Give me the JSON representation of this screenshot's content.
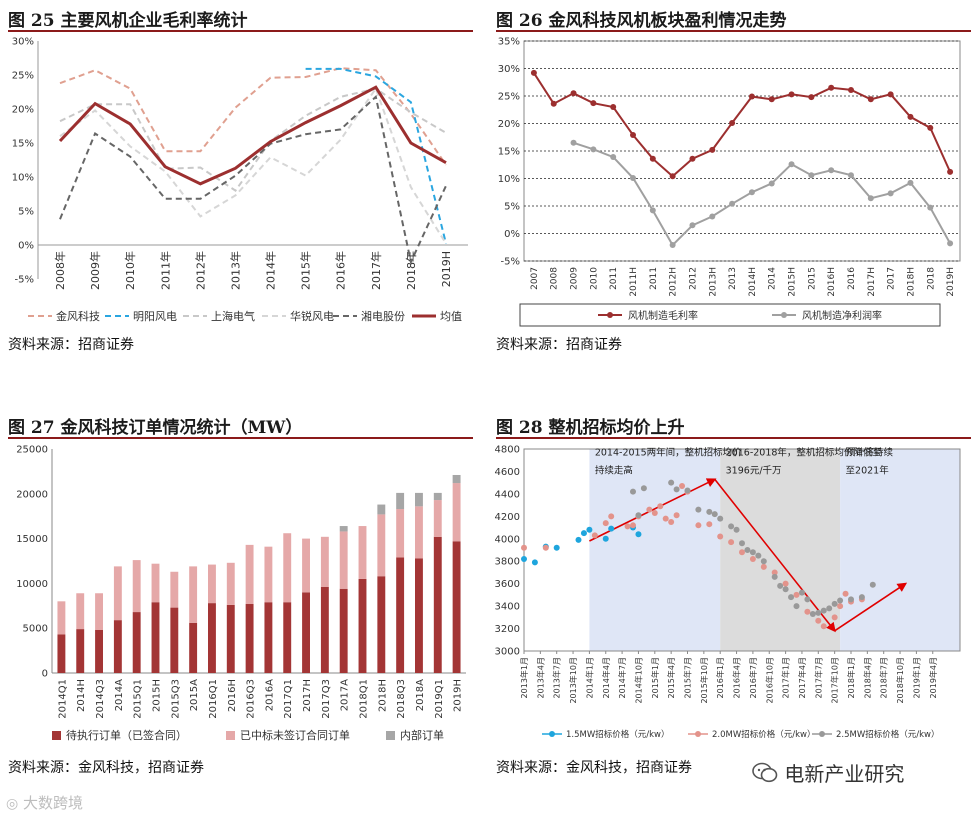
{
  "colors": {
    "accent_red": "#8b1a1a",
    "dark_red": "#a33535",
    "grey_line": "#a0a0a0",
    "bar_dark": "#a33535",
    "bar_pink": "#e5a8a8",
    "bar_grey": "#a6a6a6",
    "band_blue": "#dfe6f6",
    "band_grey": "#dcdcdc",
    "arrow_red": "#e00000"
  },
  "chart_data": [
    {
      "id": "fig25",
      "type": "line",
      "title": "图 25   主要风机企业毛利率统计",
      "source": "资料来源：招商证券",
      "categories": [
        "2008年",
        "2009年",
        "2010年",
        "2011年",
        "2012年",
        "2013年",
        "2014年",
        "2015年",
        "2016年",
        "2017年",
        "2018年",
        "2019H"
      ],
      "ylim": [
        -5,
        30
      ],
      "yticks": [
        "-5%",
        "0%",
        "5%",
        "10%",
        "15%",
        "20%",
        "25%",
        "30%"
      ],
      "ytick_values": [
        -5,
        0,
        5,
        10,
        15,
        20,
        25,
        30
      ],
      "series": [
        {
          "name": "金风科技",
          "color": "#e0a090",
          "dash": "6,4",
          "width": 2,
          "values": [
            23.8,
            25.7,
            23.0,
            13.8,
            13.8,
            20.2,
            24.6,
            24.7,
            26.0,
            25.7,
            19.3,
            11.8
          ]
        },
        {
          "name": "明阳风电",
          "color": "#2aa6e0",
          "dash": "6,4",
          "width": 2,
          "values": [
            null,
            null,
            null,
            null,
            null,
            null,
            null,
            25.9,
            25.9,
            24.8,
            21.0,
            0.2
          ]
        },
        {
          "name": "上海电气",
          "color": "#c8c8c8",
          "dash": "6,4",
          "width": 2,
          "values": [
            18.2,
            20.7,
            20.7,
            11.2,
            11.4,
            8.0,
            15.3,
            19.0,
            21.8,
            23.0,
            19.5,
            16.5
          ]
        },
        {
          "name": "华锐风电",
          "color": "#d6d6d6",
          "dash": "6,4",
          "width": 2,
          "values": [
            16.0,
            19.8,
            14.5,
            10.8,
            4.2,
            7.3,
            12.9,
            10.2,
            15.5,
            23.0,
            8.5,
            0.2
          ]
        },
        {
          "name": "湘电股份",
          "color": "#666666",
          "dash": "6,4",
          "width": 2,
          "values": [
            3.8,
            16.4,
            13.0,
            6.8,
            6.8,
            10.2,
            14.9,
            16.3,
            17.0,
            21.8,
            -2.5,
            8.7
          ]
        },
        {
          "name": "均值",
          "color": "#9c2f2f",
          "dash": "",
          "width": 3,
          "values": [
            15.3,
            20.8,
            17.8,
            11.5,
            9.0,
            11.3,
            15.2,
            18.0,
            20.5,
            23.2,
            15.0,
            12.1
          ]
        }
      ]
    },
    {
      "id": "fig26",
      "type": "line",
      "title": "图 26 金风科技风机板块盈利情况走势",
      "source": "资料来源：招商证券",
      "categories": [
        "2007",
        "2008",
        "2009",
        "2010",
        "2011",
        "2011H",
        "2011",
        "2012H",
        "2012",
        "2013H",
        "2013",
        "2014H",
        "2014",
        "2015H",
        "2015",
        "2016H",
        "2016",
        "2017H",
        "2017",
        "2018H",
        "2018",
        "2019H"
      ],
      "ylim": [
        -5,
        35
      ],
      "yticks": [
        "-5%",
        "0%",
        "5%",
        "10%",
        "15%",
        "20%",
        "25%",
        "30%",
        "35%"
      ],
      "ytick_values": [
        -5,
        0,
        5,
        10,
        15,
        20,
        25,
        30,
        35
      ],
      "series": [
        {
          "name": "风机制造毛利率",
          "color": "#9c2f2f",
          "values": [
            29.2,
            23.6,
            25.5,
            23.7,
            23.0,
            17.9,
            13.6,
            10.4,
            13.6,
            15.2,
            20.1,
            24.9,
            24.4,
            25.3,
            24.8,
            26.5,
            26.1,
            24.4,
            25.3,
            21.2,
            19.2,
            11.2
          ]
        },
        {
          "name": "风机制造净利润率",
          "color": "#a0a0a0",
          "values": [
            null,
            null,
            16.5,
            15.3,
            13.9,
            10.1,
            4.2,
            -2.1,
            1.5,
            3.1,
            5.4,
            7.5,
            9.1,
            12.6,
            10.6,
            11.5,
            10.6,
            6.4,
            7.3,
            9.2,
            4.7,
            -1.8
          ]
        }
      ]
    },
    {
      "id": "fig27",
      "type": "bar",
      "stacked": true,
      "title": "图 27 金风科技订单情况统计（MW）",
      "source": "资料来源：金风科技，招商证券",
      "categories": [
        "2014Q1",
        "2014H",
        "2014Q3",
        "2014A",
        "2015Q1",
        "2015H",
        "2015Q3",
        "2015A",
        "2016Q1",
        "2016H",
        "2016Q3",
        "2016A",
        "2017Q1",
        "2017H",
        "2017Q3",
        "2017A",
        "2018Q1",
        "2018H",
        "2018Q3",
        "2018A",
        "2019Q1",
        "2019H"
      ],
      "ylim": [
        0,
        25000
      ],
      "yticks": [
        "0",
        "5000",
        "10000",
        "15000",
        "20000",
        "25000"
      ],
      "ytick_values": [
        0,
        5000,
        10000,
        15000,
        20000,
        25000
      ],
      "series": [
        {
          "name": "待执行订单（已签合同）",
          "color": "#a33535",
          "values": [
            4300,
            4900,
            4800,
            5900,
            6800,
            7900,
            7300,
            5600,
            7800,
            7600,
            7700,
            7900,
            7900,
            9000,
            9600,
            9400,
            10500,
            10800,
            12900,
            12800,
            15200,
            14700
          ]
        },
        {
          "name": "已中标未签订合同订单",
          "color": "#e5a8a8",
          "values": [
            3700,
            4000,
            4100,
            6000,
            5800,
            4300,
            4000,
            6300,
            4300,
            4700,
            6600,
            6200,
            7700,
            6000,
            5600,
            6400,
            5900,
            6900,
            5400,
            5800,
            4100,
            6500
          ]
        },
        {
          "name": "内部订单",
          "color": "#a6a6a6",
          "values": [
            0,
            0,
            0,
            0,
            0,
            0,
            0,
            0,
            0,
            0,
            0,
            0,
            0,
            0,
            0,
            600,
            0,
            1100,
            1800,
            1500,
            800,
            900
          ]
        }
      ]
    },
    {
      "id": "fig28",
      "type": "scatter",
      "title": "图 28 整机招标均价上升",
      "source": "资料来源：金风科技，招商证券",
      "x_labels": [
        "2013年1月",
        "2013年4月",
        "2013年7月",
        "2013年10月",
        "2014年1月",
        "2014年4月",
        "2014年7月",
        "2014年10月",
        "2015年1月",
        "2015年4月",
        "2015年7月",
        "2015年10月",
        "2016年1月",
        "2016年4月",
        "2016年7月",
        "2016年10月",
        "2017年1月",
        "2017年4月",
        "2017年7月",
        "2017年10月",
        "2018年1月",
        "2018年4月",
        "2018年7月",
        "2018年10月",
        "2019年1月",
        "2019年4月"
      ],
      "xlim": [
        0,
        80
      ],
      "ylim": [
        3000,
        4800
      ],
      "yticks": [
        "3000",
        "3200",
        "3400",
        "3600",
        "3800",
        "4000",
        "4200",
        "4400",
        "4600",
        "4800"
      ],
      "ytick_values": [
        3000,
        3200,
        3400,
        3600,
        3800,
        4000,
        4200,
        4400,
        4600,
        4800
      ],
      "annotations": [
        {
          "text": [
            "2014-2015两年间，整机招标均价",
            "持续走高"
          ]
        },
        {
          "text": [
            "2016-2018年，整机招标均价降低至",
            "3196元/千万"
          ]
        },
        {
          "text": [
            "预计将持续",
            "至2021年"
          ]
        }
      ],
      "series": [
        {
          "name": "1.5MW招标价格（元/kw）",
          "color": "#1ea5dd",
          "points": [
            [
              0,
              3820
            ],
            [
              2,
              3790
            ],
            [
              4,
              3930
            ],
            [
              6,
              3920
            ],
            [
              10,
              3990
            ],
            [
              11,
              4050
            ],
            [
              12,
              4080
            ],
            [
              15,
              4000
            ],
            [
              16,
              4090
            ],
            [
              20,
              4100
            ],
            [
              21,
              4040
            ]
          ]
        },
        {
          "name": "2.0MW招标价格（元/kw）",
          "color": "#e3938b",
          "points": [
            [
              0,
              3920
            ],
            [
              4,
              3920
            ],
            [
              13,
              4030
            ],
            [
              15,
              4140
            ],
            [
              16,
              4200
            ],
            [
              19,
              4110
            ],
            [
              20,
              4120
            ],
            [
              21,
              4200
            ],
            [
              23,
              4260
            ],
            [
              24,
              4230
            ],
            [
              25,
              4290
            ],
            [
              26,
              4180
            ],
            [
              27,
              4150
            ],
            [
              28,
              4210
            ],
            [
              29,
              4470
            ],
            [
              30,
              4420
            ],
            [
              32,
              4120
            ],
            [
              34,
              4130
            ],
            [
              36,
              4020
            ],
            [
              38,
              3970
            ],
            [
              40,
              3880
            ],
            [
              42,
              3820
            ],
            [
              44,
              3750
            ],
            [
              46,
              3700
            ],
            [
              48,
              3600
            ],
            [
              50,
              3500
            ],
            [
              52,
              3350
            ],
            [
              54,
              3270
            ],
            [
              55,
              3220
            ],
            [
              57,
              3300
            ],
            [
              58,
              3400
            ],
            [
              59,
              3510
            ],
            [
              60,
              3440
            ],
            [
              62,
              3460
            ]
          ]
        },
        {
          "name": "2.5MW招标价格（元/kw）",
          "color": "#999999",
          "points": [
            [
              20,
              4420
            ],
            [
              21,
              4210
            ],
            [
              22,
              4450
            ],
            [
              27,
              4500
            ],
            [
              28,
              4440
            ],
            [
              30,
              4430
            ],
            [
              32,
              4260
            ],
            [
              34,
              4240
            ],
            [
              35,
              4220
            ],
            [
              36,
              4180
            ],
            [
              38,
              4110
            ],
            [
              39,
              4080
            ],
            [
              40,
              3960
            ],
            [
              41,
              3900
            ],
            [
              42,
              3880
            ],
            [
              43,
              3850
            ],
            [
              44,
              3800
            ],
            [
              46,
              3660
            ],
            [
              47,
              3580
            ],
            [
              48,
              3550
            ],
            [
              49,
              3480
            ],
            [
              50,
              3400
            ],
            [
              51,
              3520
            ],
            [
              52,
              3460
            ],
            [
              53,
              3330
            ],
            [
              54,
              3340
            ],
            [
              55,
              3360
            ],
            [
              56,
              3380
            ],
            [
              57,
              3420
            ],
            [
              58,
              3450
            ],
            [
              60,
              3460
            ],
            [
              62,
              3480
            ],
            [
              64,
              3590
            ]
          ]
        }
      ]
    }
  ],
  "watermark_left": "大数跨境",
  "watermark_right": "电新产业研究"
}
